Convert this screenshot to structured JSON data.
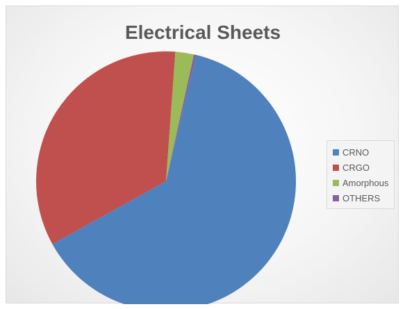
{
  "chart_data": {
    "type": "pie",
    "title": "Electrical Sheets",
    "legend_position": "right",
    "categories": [
      "CRNO",
      "CRGO",
      "Amorphous",
      "OTHERS"
    ],
    "values": [
      63.2,
      34.2,
      2.3,
      0.3
    ],
    "value_unit": "%",
    "colors": [
      "#4f81bd",
      "#c0504d",
      "#9bbb59",
      "#8064a2"
    ]
  }
}
